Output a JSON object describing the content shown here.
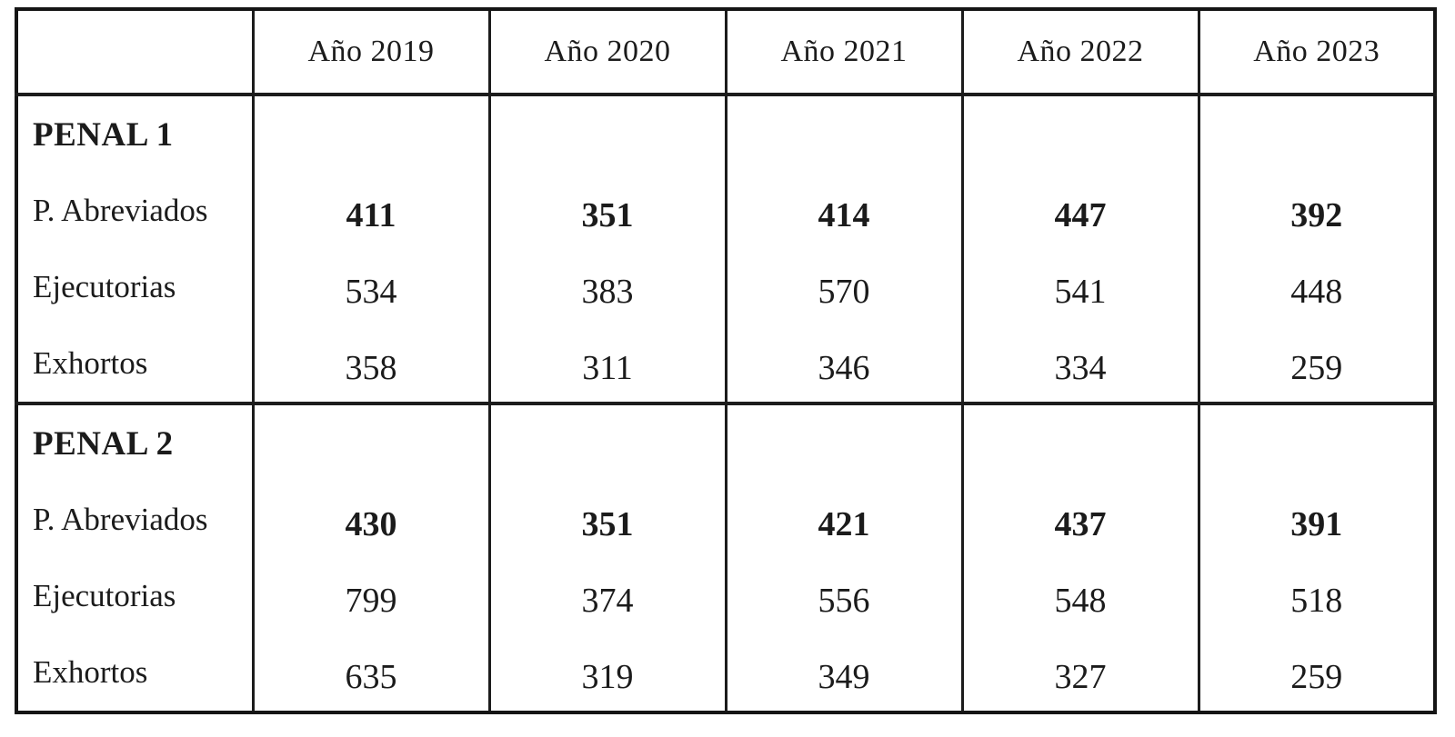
{
  "table": {
    "header": {
      "corner": "",
      "columns": [
        "Año 2019",
        "Año 2020",
        "Año 2021",
        "Año 2022",
        "Año 2023"
      ]
    },
    "sections": [
      {
        "title": "PENAL 1",
        "rows": [
          {
            "label": "P. Abreviados",
            "bold": true,
            "values": [
              "411",
              "351",
              "414",
              "447",
              "392"
            ]
          },
          {
            "label": "Ejecutorias",
            "bold": false,
            "values": [
              "534",
              "383",
              "570",
              "541",
              "448"
            ]
          },
          {
            "label": "Exhortos",
            "bold": false,
            "values": [
              "358",
              "311",
              "346",
              "334",
              "259"
            ]
          }
        ]
      },
      {
        "title": "PENAL 2",
        "rows": [
          {
            "label": "P. Abreviados",
            "bold": true,
            "values": [
              "430",
              "351",
              "421",
              "437",
              "391"
            ]
          },
          {
            "label": "Ejecutorias",
            "bold": false,
            "values": [
              "799",
              "374",
              "556",
              "548",
              "518"
            ]
          },
          {
            "label": "Exhortos",
            "bold": false,
            "values": [
              "635",
              "319",
              "349",
              "327",
              "259"
            ]
          }
        ]
      }
    ]
  },
  "colors": {
    "border": "#1c1c1c",
    "text": "#1b1b1b",
    "background": "#ffffff"
  }
}
